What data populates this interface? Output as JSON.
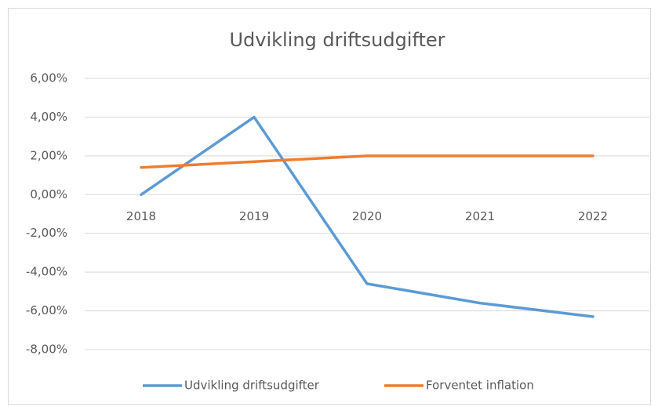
{
  "chart_data": {
    "type": "line",
    "title": "Udvikling driftsudgifter",
    "categories": [
      "2018",
      "2019",
      "2020",
      "2021",
      "2022"
    ],
    "series": [
      {
        "name": "Udvikling driftsudgifter",
        "color": "#5b9bd5",
        "values": [
          0,
          4,
          -4.6,
          -5.6,
          -6.3
        ]
      },
      {
        "name": "Forventet inflation",
        "color": "#ed7d31",
        "values": [
          1.4,
          1.7,
          2.0,
          2.0,
          2.0
        ]
      }
    ],
    "ylim": [
      -8,
      6
    ],
    "yticks": [
      {
        "value": -8,
        "label": "-8,00%"
      },
      {
        "value": -6,
        "label": "-6,00%"
      },
      {
        "value": -4,
        "label": "-4,00%"
      },
      {
        "value": -2,
        "label": "-2,00%"
      },
      {
        "value": 0,
        "label": "0,00%"
      },
      {
        "value": 2,
        "label": "2,00%"
      },
      {
        "value": 4,
        "label": "4,00%"
      },
      {
        "value": 6,
        "label": "6,00%"
      }
    ],
    "grid": true,
    "legend": "bottom"
  }
}
